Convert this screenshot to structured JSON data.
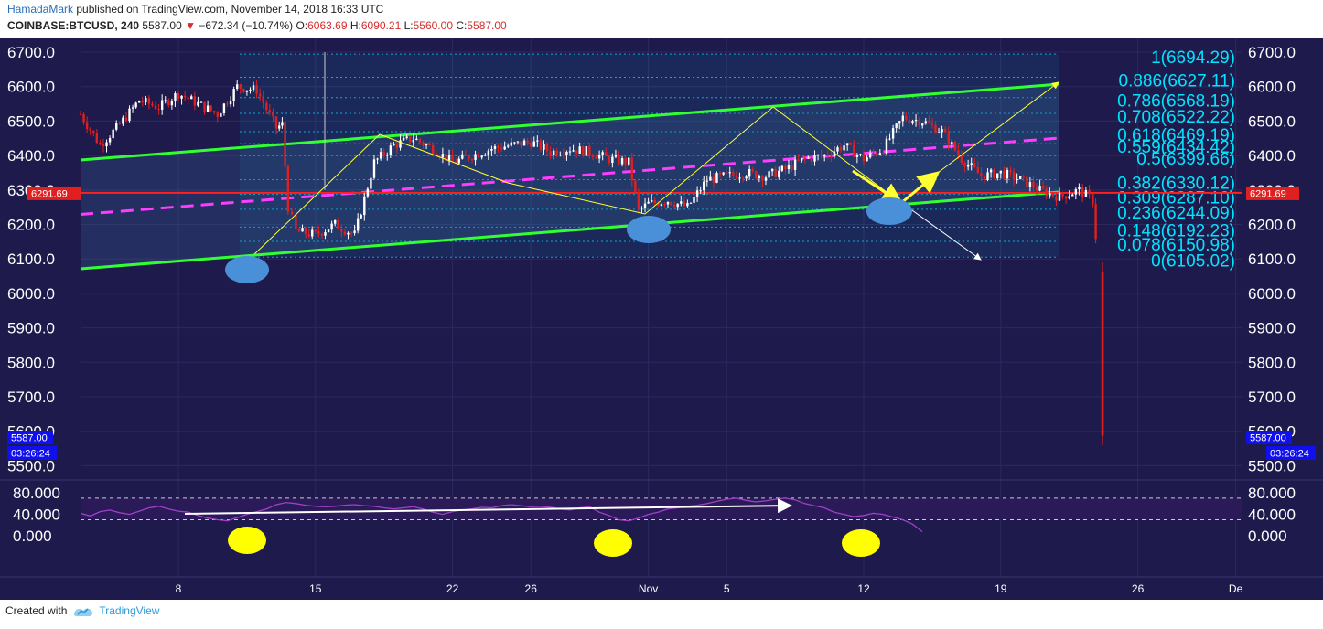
{
  "header": {
    "author": "HamadaMark",
    "published_text": "published on TradingView.com, November 14, 2018 16:33 UTC",
    "symbol": "COINBASE:BTCUSD",
    "interval": "240",
    "last": "5587.00",
    "change": "−672.34 (−10.74%)",
    "o_label": "O:",
    "o_value": "6063.69",
    "h_label": "H:",
    "h_value": "6090.21",
    "l_label": "L:",
    "l_value": "5560.00",
    "c_label": "C:",
    "c_value": "5587.00"
  },
  "footer": {
    "created_with": "Created with",
    "brand": "TradingView"
  },
  "colors": {
    "background": "#1e1a4c",
    "channel": "#32ff32",
    "midline": "#ff3cff",
    "support": "#ff2020",
    "fib": "#00e5ff",
    "rsi": "#a040c8",
    "rsi_band": "#2a1a58",
    "arrow": "#ffff33",
    "bull": "#ffffff",
    "bear": "#e02020",
    "marker_blue": "#4a90d9",
    "marker_yellow": "#ffff00"
  },
  "chart_data": {
    "type": "candlestick",
    "title": "",
    "y_ticks": [
      "5500.0",
      "5600.0",
      "5700.0",
      "5800.0",
      "5900.0",
      "6000.0",
      "6100.0",
      "6200.0",
      "6300.0",
      "6400.0",
      "6500.0",
      "6600.0",
      "6700.0"
    ],
    "ylim": [
      5450,
      6740
    ],
    "x_ticks": [
      "8",
      "15",
      "22",
      "26",
      "Nov",
      "5",
      "12",
      "19",
      "26",
      "De"
    ],
    "price_label_support": "6291.69",
    "price_label_last": "5587.00",
    "countdown": "03:26:24",
    "fib_levels": [
      {
        "ratio": "1",
        "price": 6694.29,
        "label": "1(6694.29)"
      },
      {
        "ratio": "0.886",
        "price": 6627.11,
        "label": "0.886(6627.11)"
      },
      {
        "ratio": "0.786",
        "price": 6568.19,
        "label": "0.786(6568.19)"
      },
      {
        "ratio": "0.708",
        "price": 6522.22,
        "label": "0.708(6522.22)"
      },
      {
        "ratio": "0.618",
        "price": 6469.19,
        "label": "0.618(6469.19)"
      },
      {
        "ratio": "0.559",
        "price": 6434.42,
        "label": "0.559(6434.42)"
      },
      {
        "ratio": "0.5",
        "price": 6399.66,
        "label": "0.5(6399.66)"
      },
      {
        "ratio": "0.382",
        "price": 6330.12,
        "label": "0.382(6330.12)"
      },
      {
        "ratio": "0.309",
        "price": 6287.1,
        "label": "0.309(6287.10)"
      },
      {
        "ratio": "0.236",
        "price": 6244.09,
        "label": "0.236(6244.09)"
      },
      {
        "ratio": "0.148",
        "price": 6192.23,
        "label": "0.148(6192.23)"
      },
      {
        "ratio": "0.078",
        "price": 6150.98,
        "label": "0.078(6150.98)"
      },
      {
        "ratio": "0",
        "price": 6105.02,
        "label": "0(6105.02)"
      }
    ],
    "support_price": 6291.69,
    "last_price": 5587.0,
    "rsi": {
      "y_ticks": [
        "80.000",
        "40.000",
        "0.000"
      ],
      "ylim": [
        0,
        80
      ],
      "upper_band": 70,
      "lower_band": 30,
      "values": [
        42,
        37,
        45,
        48,
        43,
        40,
        46,
        52,
        55,
        50,
        46,
        44,
        38,
        33,
        30,
        28,
        34,
        40,
        45,
        50,
        58,
        62,
        60,
        57,
        55,
        54,
        55,
        57,
        58,
        56,
        55,
        52,
        50,
        52,
        54,
        50,
        44,
        40,
        45,
        48,
        50,
        53,
        52,
        56,
        58,
        56,
        54,
        55,
        53,
        50,
        48,
        52,
        54,
        44,
        38,
        30,
        28,
        33,
        40,
        44,
        50,
        52,
        55,
        57,
        60,
        64,
        68,
        70,
        66,
        63,
        65,
        68,
        70,
        67,
        60,
        56,
        52,
        44,
        40,
        36,
        38,
        42,
        40,
        35,
        30,
        22,
        8
      ]
    }
  }
}
